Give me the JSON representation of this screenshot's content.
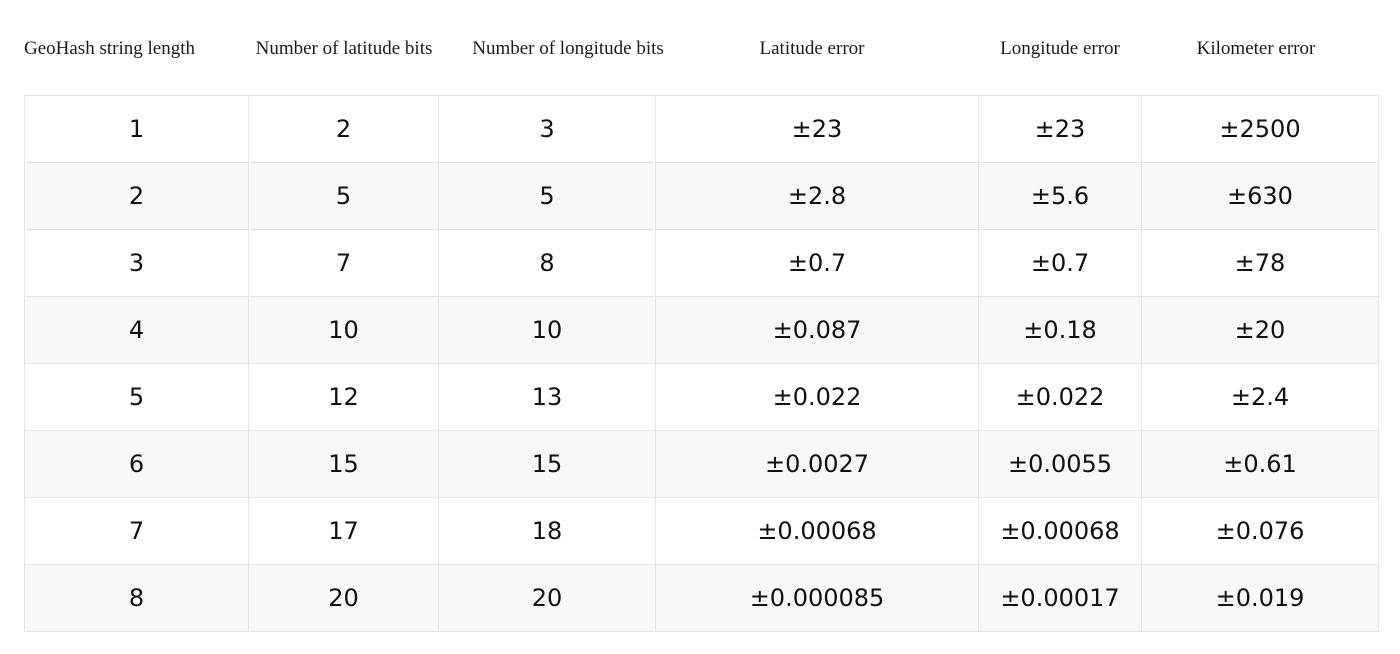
{
  "headers": [
    "GeoHash string length",
    "Number of latitude bits",
    "Number of longitude bits",
    "Latitude error",
    "Longitude error",
    "Kilometer error"
  ],
  "rows": [
    [
      "1",
      "2",
      "3",
      "±23",
      "±23",
      "±2500"
    ],
    [
      "2",
      "5",
      "5",
      "±2.8",
      "±5.6",
      "±630"
    ],
    [
      "3",
      "7",
      "8",
      "±0.7",
      "±0.7",
      "±78"
    ],
    [
      "4",
      "10",
      "10",
      "±0.087",
      "±0.18",
      "±20"
    ],
    [
      "5",
      "12",
      "13",
      "±0.022",
      "±0.022",
      "±2.4"
    ],
    [
      "6",
      "15",
      "15",
      "±0.0027",
      "±0.0055",
      "±0.61"
    ],
    [
      "7",
      "17",
      "18",
      "±0.00068",
      "±0.00068",
      "±0.076"
    ],
    [
      "8",
      "20",
      "20",
      "±0.000085",
      "±0.00017",
      "±0.019"
    ]
  ]
}
